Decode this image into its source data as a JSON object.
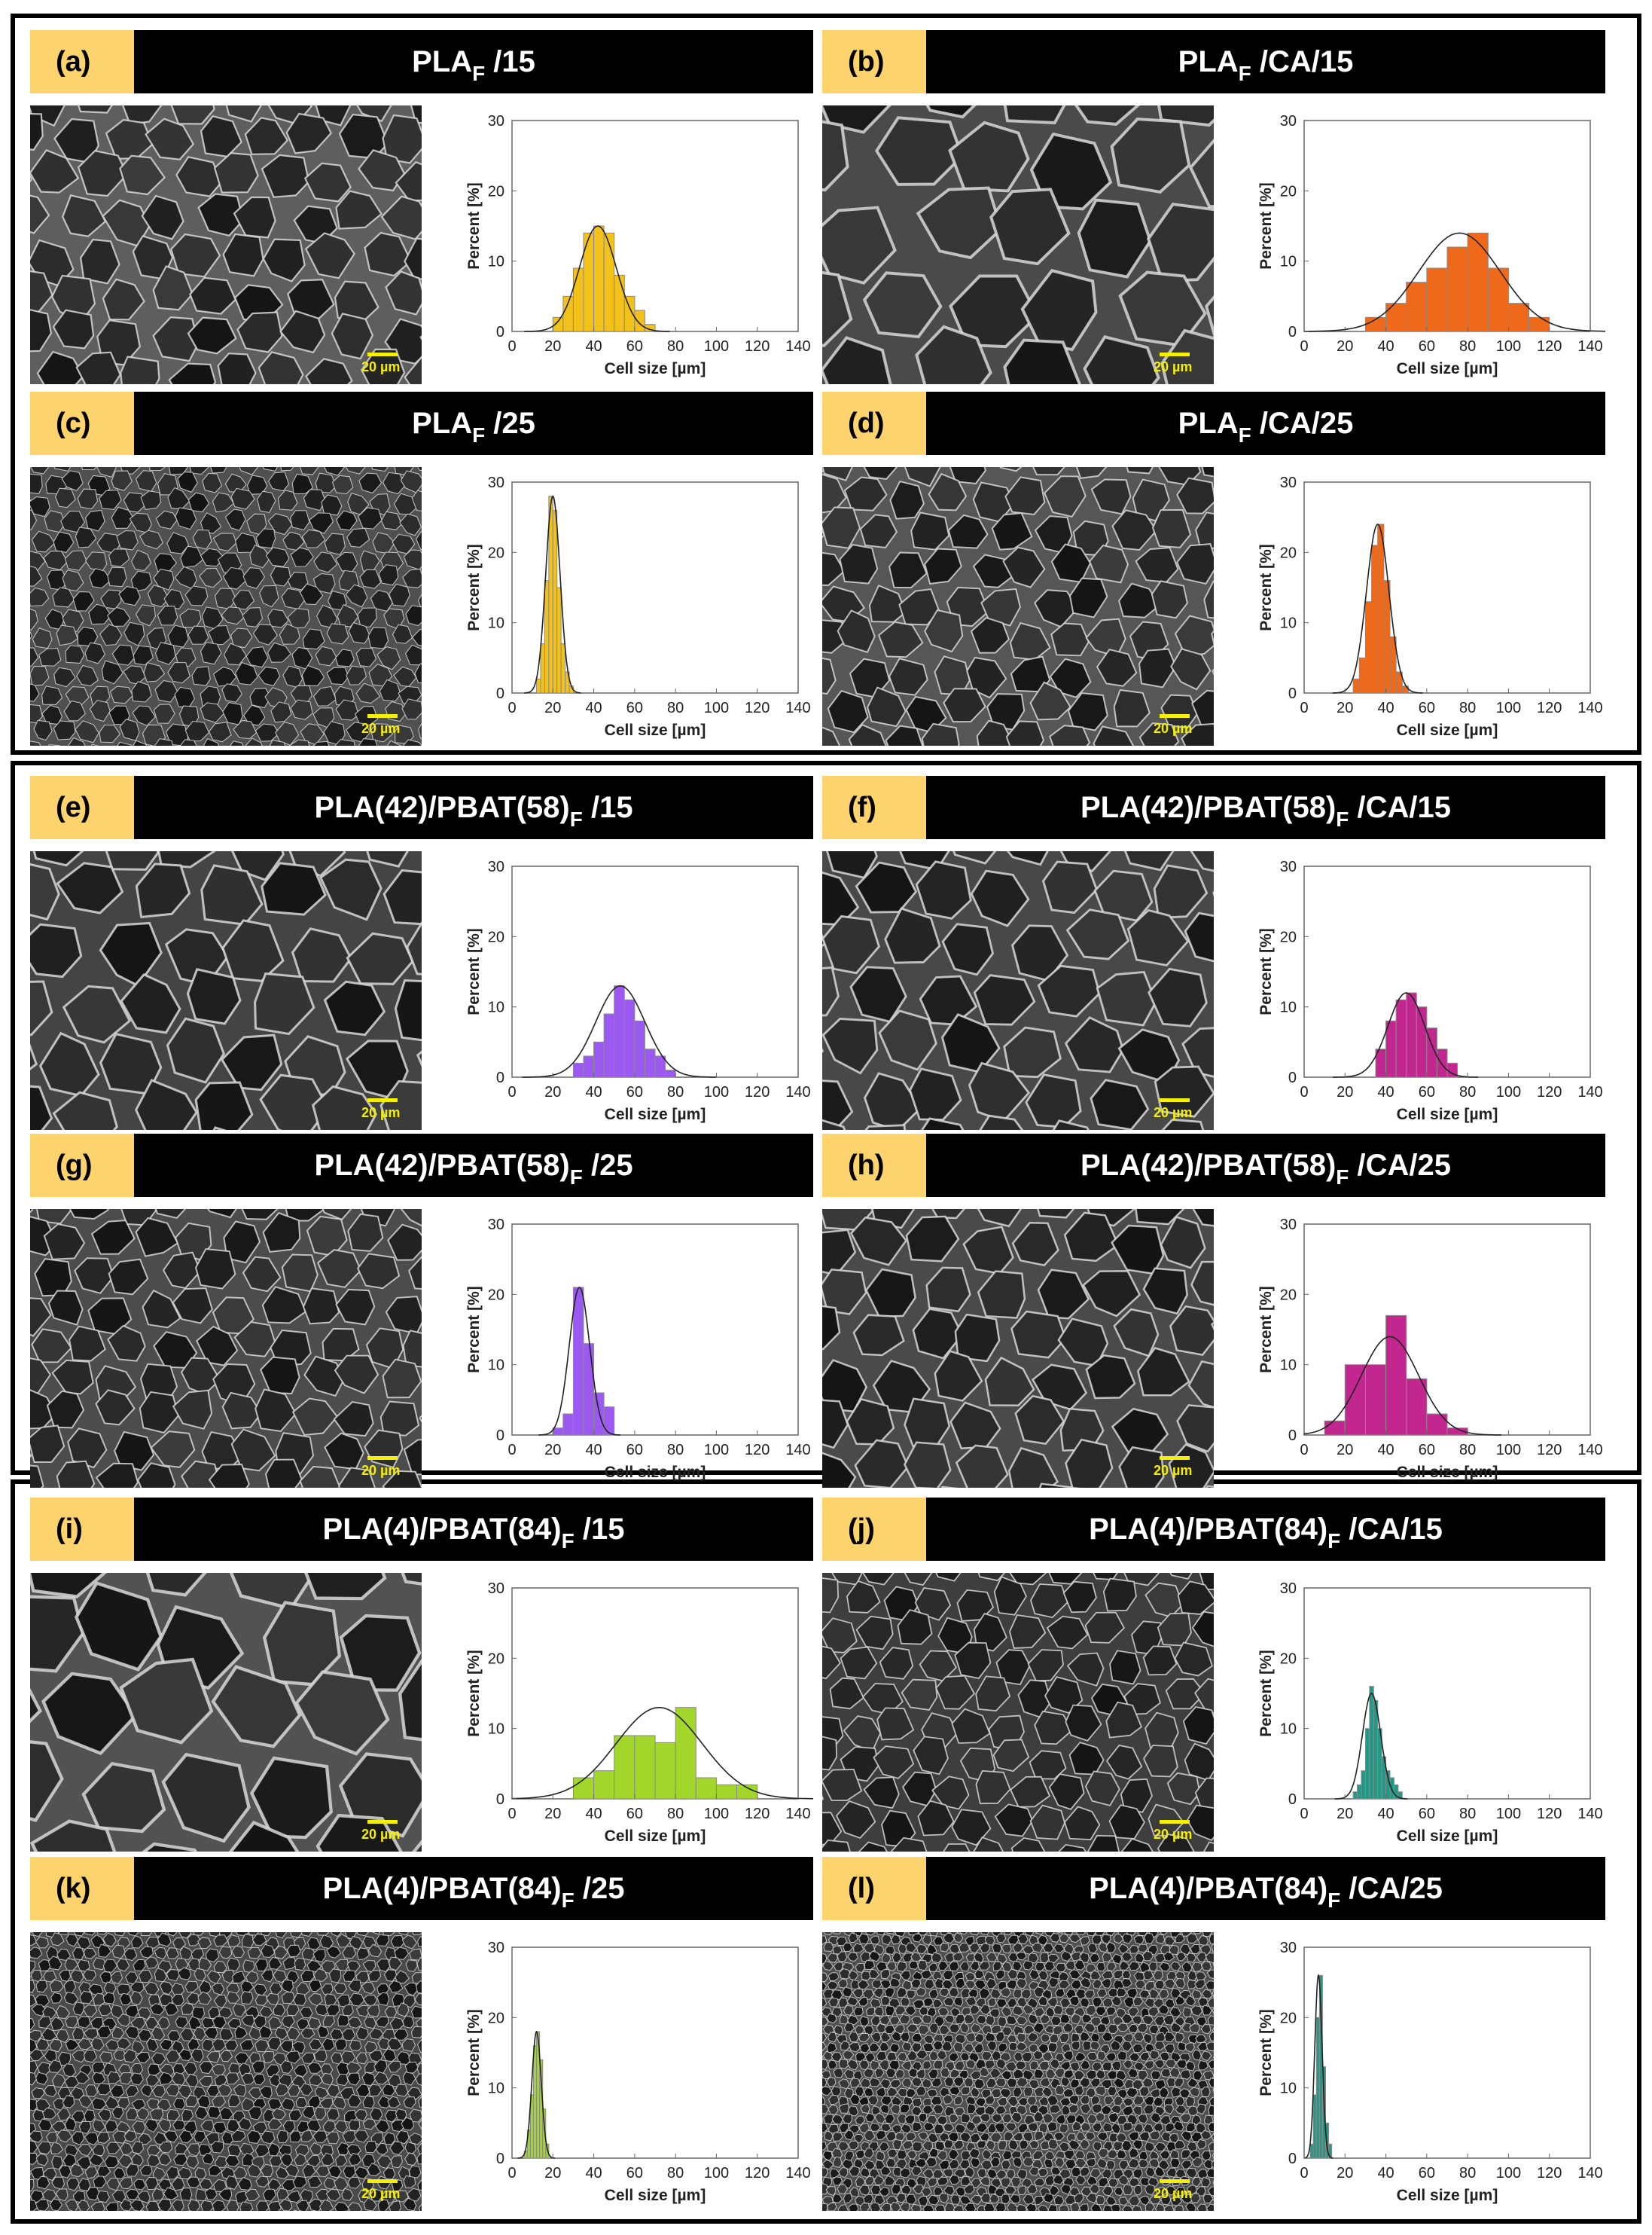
{
  "colors": {
    "header_bg": "#000000",
    "label_bg": "#fcd36c",
    "scale_bar": "#f5f000"
  },
  "panels": [
    {
      "letter": "(a)",
      "title_pre": "PLA",
      "title_sub": "F",
      "title_post": " /15",
      "color": "#f2c21a",
      "sem_tone": "#5e5e5e",
      "sem_cell": 62
    },
    {
      "letter": "(b)",
      "title_pre": "PLA",
      "title_sub": "F",
      "title_post": " /CA/15",
      "color": "#ee6a1a",
      "sem_tone": "#4a4a4a",
      "sem_cell": 110
    },
    {
      "letter": "(c)",
      "title_pre": "PLA",
      "title_sub": "F",
      "title_post": " /25",
      "color": "#f2c21a",
      "sem_tone": "#505050",
      "sem_cell": 30
    },
    {
      "letter": "(d)",
      "title_pre": "PLA",
      "title_sub": "F",
      "title_post": " /CA/25",
      "color": "#ee6a1a",
      "sem_tone": "#565656",
      "sem_cell": 55
    },
    {
      "letter": "(e)",
      "title_pre": "PLA(42)/PBAT(58)",
      "title_sub": "F",
      "title_post": " /15",
      "color": "#9b59f2",
      "sem_tone": "#444444",
      "sem_cell": 85
    },
    {
      "letter": "(f)",
      "title_pre": "PLA(42)/PBAT(58)",
      "title_sub": "F",
      "title_post": " /CA/15",
      "color": "#c2278f",
      "sem_tone": "#484848",
      "sem_cell": 80
    },
    {
      "letter": "(g)",
      "title_pre": "PLA(42)/PBAT(58)",
      "title_sub": "F",
      "title_post": " /25",
      "color": "#9b59f2",
      "sem_tone": "#4c4c4c",
      "sem_cell": 55
    },
    {
      "letter": "(h)",
      "title_pre": "PLA(42)/PBAT(58)",
      "title_sub": "F",
      "title_post": " /CA/25",
      "color": "#c2278f",
      "sem_tone": "#4a4a4a",
      "sem_cell": 70
    },
    {
      "letter": "(i)",
      "title_pre": "PLA(4)/PBAT(84)",
      "title_sub": "F",
      "title_post": " /15",
      "color": "#a2d62a",
      "sem_tone": "#525252",
      "sem_cell": 120
    },
    {
      "letter": "(j)",
      "title_pre": "PLA(4)/PBAT(84)",
      "title_sub": "F",
      "title_post": " /CA/15",
      "color": "#1f9a86",
      "sem_tone": "#3e3e3e",
      "sem_cell": 50
    },
    {
      "letter": "(k)",
      "title_pre": "PLA(4)/PBAT(84)",
      "title_sub": "F",
      "title_post": " /25",
      "color": "#a2d62a",
      "sem_tone": "#4a4a4a",
      "sem_cell": 18
    },
    {
      "letter": "(l)",
      "title_pre": "PLA(4)/PBAT(84)",
      "title_sub": "F",
      "title_post": " /CA/25",
      "color": "#1f9a86",
      "sem_tone": "#505050",
      "sem_cell": 14
    }
  ],
  "scale_label": "20 µm",
  "chart_data": [
    {
      "panel": "a",
      "type": "bar",
      "title": "",
      "xlabel": "Cell size [µm]",
      "ylabel": "Percent [%]",
      "xlim": [
        0,
        140
      ],
      "ylim": [
        0,
        30
      ],
      "xticks": [
        0,
        20,
        40,
        60,
        80,
        100,
        120,
        140
      ],
      "yticks": [
        0,
        10,
        20,
        30
      ],
      "bin_width": 5,
      "bin_start": [
        20,
        25,
        30,
        35,
        40,
        45,
        50,
        55,
        60,
        65
      ],
      "values": [
        2,
        5,
        9,
        14,
        15,
        14,
        8,
        5,
        3,
        1
      ],
      "fit": {
        "mean": 42,
        "sd": 9,
        "peak": 15
      }
    },
    {
      "panel": "b",
      "type": "bar",
      "title": "",
      "xlabel": "Cell size [µm]",
      "ylabel": "Percent [%]",
      "xlim": [
        0,
        140
      ],
      "ylim": [
        0,
        30
      ],
      "xticks": [
        0,
        20,
        40,
        60,
        80,
        100,
        120,
        140
      ],
      "yticks": [
        0,
        10,
        20,
        30
      ],
      "bin_width": 10,
      "bin_start": [
        30,
        40,
        50,
        60,
        70,
        80,
        90,
        100,
        110
      ],
      "values": [
        2,
        4,
        7,
        9,
        12,
        14,
        9,
        4,
        2
      ],
      "fit": {
        "mean": 76,
        "sd": 20,
        "peak": 14
      }
    },
    {
      "panel": "c",
      "type": "bar",
      "title": "",
      "xlabel": "Cell size [µm]",
      "ylabel": "Percent [%]",
      "xlim": [
        0,
        140
      ],
      "ylim": [
        0,
        30
      ],
      "xticks": [
        0,
        20,
        40,
        60,
        80,
        100,
        120,
        140
      ],
      "yticks": [
        0,
        10,
        20,
        30
      ],
      "bin_width": 2,
      "bin_start": [
        12,
        14,
        16,
        18,
        20,
        22,
        24,
        26,
        28
      ],
      "values": [
        2,
        7,
        16,
        28,
        26,
        15,
        7,
        3,
        1
      ],
      "fit": {
        "mean": 20,
        "sd": 3.5,
        "peak": 28
      }
    },
    {
      "panel": "d",
      "type": "bar",
      "title": "",
      "xlabel": "Cell size [µm]",
      "ylabel": "Percent [%]",
      "xlim": [
        0,
        140
      ],
      "ylim": [
        0,
        30
      ],
      "xticks": [
        0,
        20,
        40,
        60,
        80,
        100,
        120,
        140
      ],
      "yticks": [
        0,
        10,
        20,
        30
      ],
      "bin_width": 3,
      "bin_start": [
        24,
        27,
        30,
        33,
        36,
        39,
        42,
        45,
        48
      ],
      "values": [
        2,
        5,
        13,
        21,
        24,
        16,
        8,
        3,
        1
      ],
      "fit": {
        "mean": 36,
        "sd": 5.5,
        "peak": 24
      }
    },
    {
      "panel": "e",
      "type": "bar",
      "title": "",
      "xlabel": "Cell size [µm]",
      "ylabel": "Percent [%]",
      "xlim": [
        0,
        140
      ],
      "ylim": [
        0,
        30
      ],
      "xticks": [
        0,
        20,
        40,
        60,
        80,
        100,
        120,
        140
      ],
      "yticks": [
        0,
        10,
        20,
        30
      ],
      "bin_width": 5,
      "bin_start": [
        30,
        35,
        40,
        45,
        50,
        55,
        60,
        65,
        70,
        75
      ],
      "values": [
        2,
        3,
        5,
        9,
        13,
        11,
        8,
        4,
        3,
        1
      ],
      "fit": {
        "mean": 53,
        "sd": 12,
        "peak": 13
      }
    },
    {
      "panel": "f",
      "type": "bar",
      "title": "",
      "xlabel": "Cell size [µm]",
      "ylabel": "Percent [%]",
      "xlim": [
        0,
        140
      ],
      "ylim": [
        0,
        30
      ],
      "xticks": [
        0,
        20,
        40,
        60,
        80,
        100,
        120,
        140
      ],
      "yticks": [
        0,
        10,
        20,
        30
      ],
      "bin_width": 5,
      "bin_start": [
        35,
        40,
        45,
        50,
        55,
        60,
        65,
        70
      ],
      "values": [
        4,
        8,
        11,
        12,
        10,
        7,
        4,
        2
      ],
      "fit": {
        "mean": 50,
        "sd": 9,
        "peak": 12
      }
    },
    {
      "panel": "g",
      "type": "bar",
      "title": "",
      "xlabel": "Cell size [µm]",
      "ylabel": "Percent [%]",
      "xlim": [
        0,
        140
      ],
      "ylim": [
        0,
        30
      ],
      "xticks": [
        0,
        20,
        40,
        60,
        80,
        100,
        120,
        140
      ],
      "yticks": [
        0,
        10,
        20,
        30
      ],
      "bin_width": 5,
      "bin_start": [
        20,
        25,
        30,
        35,
        40,
        45
      ],
      "values": [
        1,
        3,
        21,
        13,
        6,
        4
      ],
      "fit": {
        "mean": 33,
        "sd": 5,
        "peak": 21
      }
    },
    {
      "panel": "h",
      "type": "bar",
      "title": "",
      "xlabel": "Cell size [µm]",
      "ylabel": "Percent [%]",
      "xlim": [
        0,
        140
      ],
      "ylim": [
        0,
        30
      ],
      "xticks": [
        0,
        20,
        40,
        60,
        80,
        100,
        120,
        140
      ],
      "yticks": [
        0,
        10,
        20,
        30
      ],
      "bin_width": 10,
      "bin_start": [
        10,
        20,
        30,
        40,
        50,
        60,
        70
      ],
      "values": [
        2,
        10,
        10,
        17,
        8,
        3,
        1
      ],
      "fit": {
        "mean": 42,
        "sd": 14,
        "peak": 14
      }
    },
    {
      "panel": "i",
      "type": "bar",
      "title": "",
      "xlabel": "Cell size [µm]",
      "ylabel": "Percent [%]",
      "xlim": [
        0,
        140
      ],
      "ylim": [
        0,
        30
      ],
      "xticks": [
        0,
        20,
        40,
        60,
        80,
        100,
        120,
        140
      ],
      "yticks": [
        0,
        10,
        20,
        30
      ],
      "bin_width": 10,
      "bin_start": [
        30,
        40,
        50,
        60,
        70,
        80,
        90,
        100,
        110
      ],
      "values": [
        3,
        4,
        9,
        9,
        8,
        13,
        3,
        2,
        2
      ],
      "fit": {
        "mean": 72,
        "sd": 21,
        "peak": 13
      }
    },
    {
      "panel": "j",
      "type": "bar",
      "title": "",
      "xlabel": "Cell size [µm]",
      "ylabel": "Percent [%]",
      "xlim": [
        0,
        140
      ],
      "ylim": [
        0,
        30
      ],
      "xticks": [
        0,
        20,
        40,
        60,
        80,
        100,
        120,
        140
      ],
      "yticks": [
        0,
        10,
        20,
        30
      ],
      "bin_width": 2,
      "bin_start": [
        24,
        26,
        28,
        30,
        32,
        34,
        36,
        38,
        40,
        42,
        44,
        46
      ],
      "values": [
        1,
        2,
        4,
        10,
        16,
        14,
        10,
        6,
        4,
        3,
        2,
        1
      ],
      "fit": {
        "mean": 33,
        "sd": 4.5,
        "peak": 15
      }
    },
    {
      "panel": "k",
      "type": "bar",
      "title": "",
      "xlabel": "Cell size [µm]",
      "ylabel": "Percent [%]",
      "xlim": [
        0,
        140
      ],
      "ylim": [
        0,
        30
      ],
      "xticks": [
        0,
        20,
        40,
        60,
        80,
        100,
        120,
        140
      ],
      "yticks": [
        0,
        10,
        20,
        30
      ],
      "bin_width": 1.5,
      "bin_start": [
        6,
        7.5,
        9,
        10.5,
        12,
        13.5,
        15,
        16.5
      ],
      "values": [
        1,
        4,
        9,
        16,
        18,
        14,
        7,
        2
      ],
      "fit": {
        "mean": 12,
        "sd": 2.3,
        "peak": 18
      }
    },
    {
      "panel": "l",
      "type": "bar",
      "title": "",
      "xlabel": "Cell size [µm]",
      "ylabel": "Percent [%]",
      "xlim": [
        0,
        140
      ],
      "ylim": [
        0,
        30
      ],
      "xticks": [
        0,
        20,
        40,
        60,
        80,
        100,
        120,
        140
      ],
      "yticks": [
        0,
        10,
        20,
        30
      ],
      "bin_width": 1.5,
      "bin_start": [
        3,
        4.5,
        6,
        7.5,
        9,
        10.5,
        12
      ],
      "values": [
        2,
        9,
        20,
        26,
        13,
        5,
        2
      ],
      "fit": {
        "mean": 7,
        "sd": 1.8,
        "peak": 26
      }
    }
  ]
}
